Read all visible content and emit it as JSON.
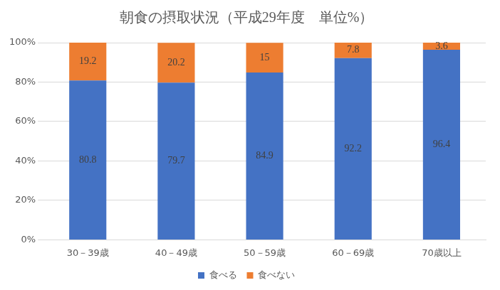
{
  "chart_data": {
    "type": "bar",
    "title": "朝食の摂取状況（平成29年度　単位%）",
    "categories": [
      "30－39歳",
      "40－49歳",
      "50－59歳",
      "60－69歳",
      "70歳以上"
    ],
    "series": [
      {
        "name": "食べる",
        "color": "#4472c4",
        "values": [
          80.8,
          79.7,
          84.9,
          92.2,
          96.4
        ]
      },
      {
        "name": "食べない",
        "color": "#ed7d31",
        "values": [
          19.2,
          20.2,
          15,
          7.8,
          3.6
        ]
      }
    ],
    "ylim": [
      0,
      100
    ],
    "yticks": [
      {
        "value": 0,
        "label": "0%"
      },
      {
        "value": 20,
        "label": "20%"
      },
      {
        "value": 40,
        "label": "40%"
      },
      {
        "value": 60,
        "label": "60%"
      },
      {
        "value": 80,
        "label": "80%"
      },
      {
        "value": 100,
        "label": "100%"
      }
    ],
    "stacked": true,
    "grid": true,
    "legend": "bottom",
    "data_labels": true
  }
}
